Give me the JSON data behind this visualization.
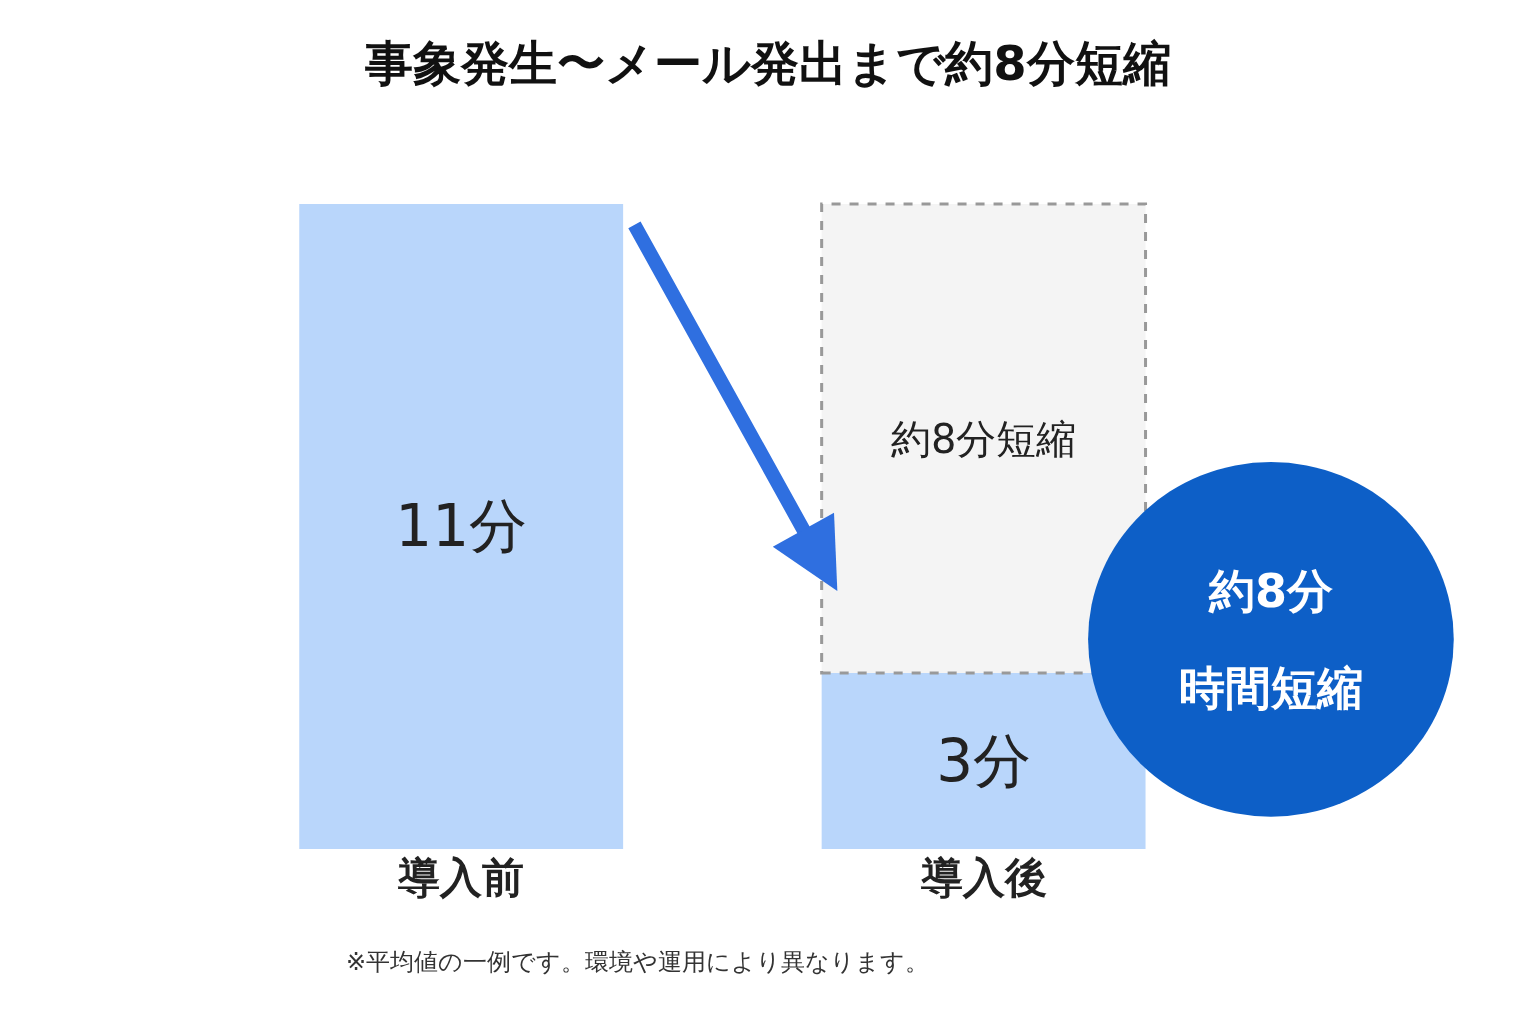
{
  "chart_data": {
    "type": "bar",
    "stacked": true,
    "title": "事象発生〜メール発出まで約8分短縮",
    "categories": [
      "導入前",
      "導入後"
    ],
    "series": [
      {
        "color": "#b9d6fb",
        "values": [
          11,
          3
        ],
        "value_labels": [
          "11分",
          "3分"
        ]
      },
      {
        "color": "#f4f4f4",
        "values": [
          null,
          8
        ],
        "value_labels": [
          null,
          "約8分短縮"
        ],
        "line_style": "dashed"
      }
    ],
    "annotations": [
      "約8分",
      "時間短縮",
      "※平均値の一例です。環境や運用により異なります。"
    ],
    "tick_labels": "x"
  }
}
